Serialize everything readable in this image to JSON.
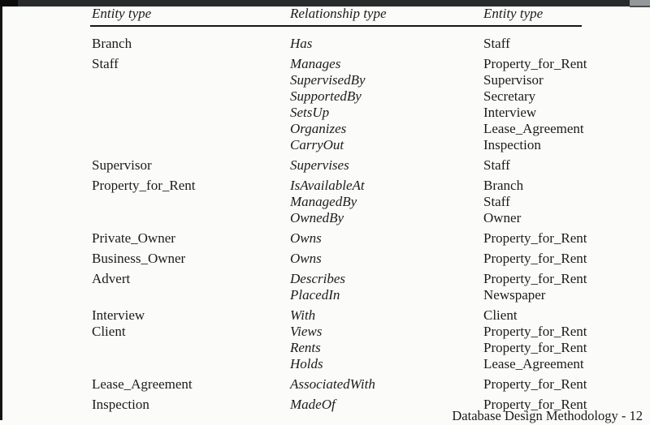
{
  "chrome": {
    "top_bar_color": "#282a2c",
    "top_bar_left_color": "#0c0c0c",
    "top_bar_right_color": "#94989b",
    "left_strip_color": "#141414",
    "rule_color": "#161616"
  },
  "table": {
    "headers": [
      "Entity type",
      "Relationship type",
      "Entity type"
    ],
    "groups": [
      {
        "entity": "Branch",
        "no_gap": false,
        "rows": [
          {
            "relationship": "Has",
            "entity": "Staff"
          }
        ]
      },
      {
        "entity": "Staff",
        "no_gap": false,
        "rows": [
          {
            "relationship": "Manages",
            "entity": "Property_for_Rent"
          },
          {
            "relationship": "SupervisedBy",
            "entity": "Supervisor"
          },
          {
            "relationship": "SupportedBy",
            "entity": "Secretary"
          },
          {
            "relationship": "SetsUp",
            "entity": "Interview"
          },
          {
            "relationship": "Organizes",
            "entity": "Lease_Agreement"
          },
          {
            "relationship": "CarryOut",
            "entity": "Inspection"
          }
        ]
      },
      {
        "entity": "Supervisor",
        "no_gap": false,
        "rows": [
          {
            "relationship": "Supervises",
            "entity": "Staff"
          }
        ]
      },
      {
        "entity": "Property_for_Rent",
        "no_gap": false,
        "rows": [
          {
            "relationship": "IsAvailableAt",
            "entity": "Branch"
          },
          {
            "relationship": "ManagedBy",
            "entity": "Staff"
          },
          {
            "relationship": "OwnedBy",
            "entity": "Owner"
          }
        ]
      },
      {
        "entity": "Private_Owner",
        "no_gap": false,
        "rows": [
          {
            "relationship": "Owns",
            "entity": "Property_for_Rent"
          }
        ]
      },
      {
        "entity": "Business_Owner",
        "no_gap": false,
        "rows": [
          {
            "relationship": "Owns",
            "entity": "Property_for_Rent"
          }
        ]
      },
      {
        "entity": "Advert",
        "no_gap": false,
        "rows": [
          {
            "relationship": "Describes",
            "entity": "Property_for_Rent"
          },
          {
            "relationship": "PlacedIn",
            "entity": "Newspaper"
          }
        ]
      },
      {
        "entity": "Interview",
        "no_gap": false,
        "rows": [
          {
            "relationship": "With",
            "entity": "Client"
          }
        ]
      },
      {
        "entity": "Client",
        "no_gap": true,
        "rows": [
          {
            "relationship": "Views",
            "entity": "Property_for_Rent"
          },
          {
            "relationship": "Rents",
            "entity": "Property_for_Rent"
          },
          {
            "relationship": "Holds",
            "entity": "Lease_Agreement"
          }
        ]
      },
      {
        "entity": "Lease_Agreement",
        "no_gap": false,
        "rows": [
          {
            "relationship": "AssociatedWith",
            "entity": "Property_for_Rent"
          }
        ]
      },
      {
        "entity": "Inspection",
        "no_gap": false,
        "rows": [
          {
            "relationship": "MadeOf",
            "entity": "Property_for_Rent"
          }
        ]
      }
    ]
  },
  "footer": {
    "label": "Database Design Methodology - 12"
  }
}
